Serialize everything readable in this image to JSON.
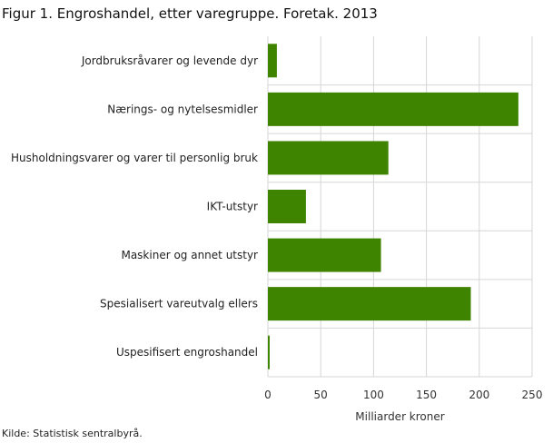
{
  "chart_data": {
    "type": "bar",
    "orientation": "horizontal",
    "title": "Figur 1. Engroshandel, etter varegruppe. Foretak. 2013",
    "categories": [
      "Jordbruksråvarer og levende dyr",
      "Nærings- og nytelsesmidler",
      "Husholdningsvarer og varer til personlig bruk",
      "IKT-utstyr",
      "Maskiner og annet utstyr",
      "Spesialisert vareutvalg ellers",
      "Uspesifisert engroshandel"
    ],
    "values": [
      8.5,
      237,
      114,
      36,
      107,
      192,
      1.7
    ],
    "xlabel": "Milliarder  kroner",
    "ylabel": "",
    "xlim": [
      0,
      250
    ],
    "xticks": [
      "0",
      "50",
      "100",
      "150",
      "200",
      "250"
    ],
    "grid": true,
    "color": "#3f8400",
    "source": "Kilde: Statistisk sentralbyrå."
  }
}
